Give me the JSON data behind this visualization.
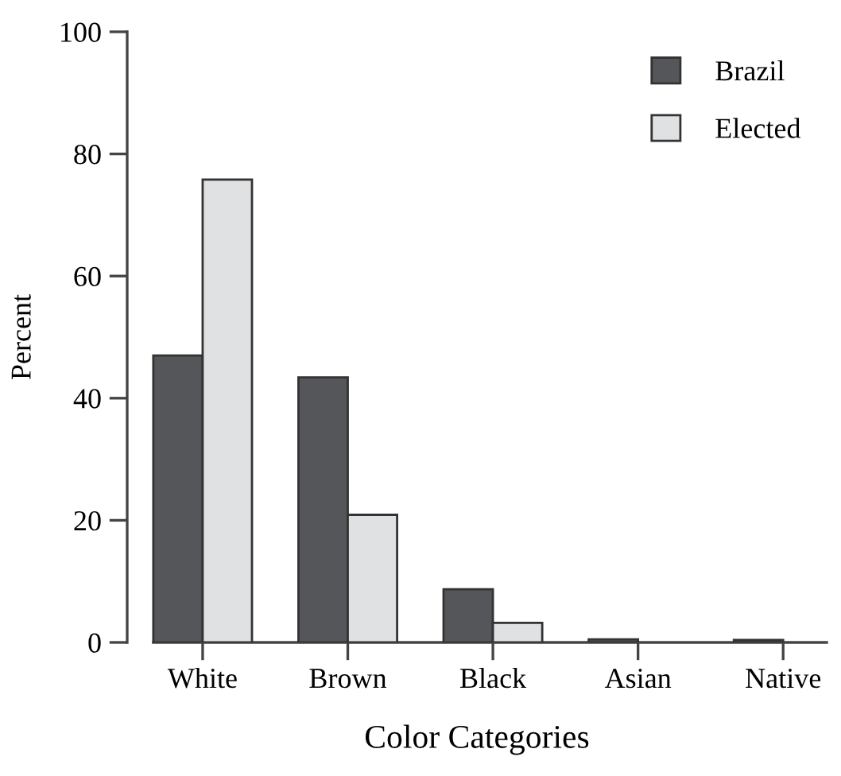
{
  "chart_data": {
    "type": "bar",
    "xlabel": "Color Categories",
    "ylabel": "Percent",
    "categories": [
      "White",
      "Brown",
      "Black",
      "Asian",
      "Native"
    ],
    "series": [
      {
        "name": "Brazil",
        "color": "#55565a",
        "values": [
          47,
          43.4,
          8.7,
          0.5,
          0.4
        ]
      },
      {
        "name": "Elected",
        "color": "#e0e1e3",
        "values": [
          75.8,
          20.9,
          3.2,
          null,
          null
        ]
      }
    ],
    "ylim": [
      0,
      100
    ],
    "yticks": [
      0,
      20,
      40,
      60,
      80,
      100
    ],
    "grid": false,
    "legend": "top right"
  }
}
